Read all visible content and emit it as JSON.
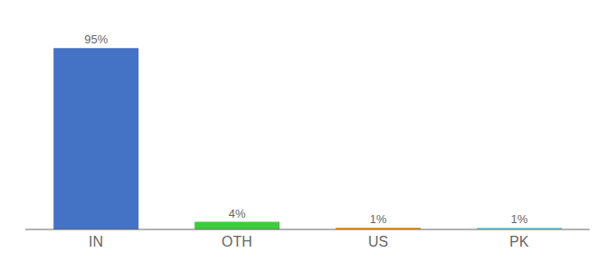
{
  "chart_data": {
    "type": "bar",
    "categories": [
      "IN",
      "OTH",
      "US",
      "PK"
    ],
    "values": [
      95,
      4,
      1,
      1
    ],
    "value_labels": [
      "95%",
      "4%",
      "1%",
      "1%"
    ],
    "colors": [
      "#4472c4",
      "#3dcc3d",
      "#e8a020",
      "#87ceeb"
    ],
    "ylim": [
      0,
      105
    ],
    "data_labels": true,
    "tick_labels": "x",
    "grid": false
  }
}
